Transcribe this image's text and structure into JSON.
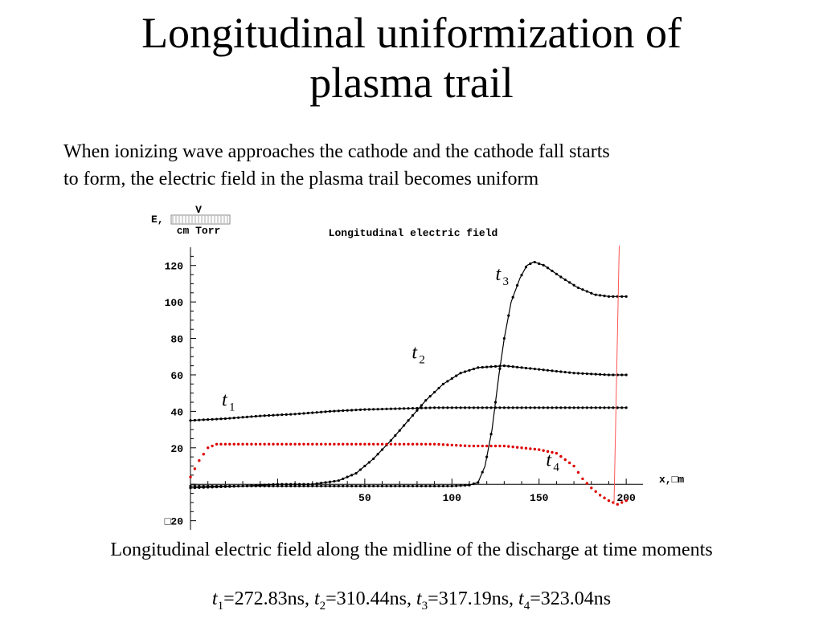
{
  "title": {
    "line1": "Longitudinal uniformization of",
    "line2": "plasma trail"
  },
  "paragraph": {
    "line1": "When ionizing wave approaches the cathode and the cathode fall starts",
    "line2": "to form, the electric field in the plasma trail becomes uniform"
  },
  "caption": {
    "line1": "Longitudinal electric field along the midline of the discharge at time moments",
    "times": [
      {
        "sym": "t",
        "sub": "1",
        "value": "=272.83ns"
      },
      {
        "sym": "t",
        "sub": "2",
        "value": "=310.44ns"
      },
      {
        "sym": "t",
        "sub": "3",
        "value": "=317.19ns"
      },
      {
        "sym": "t",
        "sub": "4",
        "value": "=323.04ns"
      }
    ]
  },
  "chart_data": {
    "type": "line",
    "title": "Longitudinal electric field",
    "ylabel_prefix": "E,",
    "ylabel_num": "V",
    "ylabel_den": "cm Torr",
    "xlabel": "x,□m",
    "xlim": [
      -50,
      205
    ],
    "ylim": [
      -25,
      130
    ],
    "xticks": [
      {
        "v": 50,
        "label": "50"
      },
      {
        "v": 100,
        "label": "100"
      },
      {
        "v": 150,
        "label": "150"
      },
      {
        "v": 200,
        "label": "200"
      }
    ],
    "yticks": [
      {
        "v": 120,
        "label": "120"
      },
      {
        "v": 100,
        "label": "100"
      },
      {
        "v": 80,
        "label": "80"
      },
      {
        "v": 60,
        "label": "60"
      },
      {
        "v": 40,
        "label": "40"
      },
      {
        "v": 20,
        "label": "20"
      },
      {
        "v": -20,
        "label": "□20"
      }
    ],
    "grid": false,
    "series": [
      {
        "name": "t1",
        "sub": "1",
        "color": "#000000",
        "label_at": [
          -32,
          43
        ],
        "points": [
          [
            -50,
            35
          ],
          [
            -30,
            36
          ],
          [
            -10,
            37.5
          ],
          [
            10,
            38.5
          ],
          [
            30,
            40
          ],
          [
            50,
            41
          ],
          [
            70,
            41.5
          ],
          [
            90,
            42
          ],
          [
            110,
            42
          ],
          [
            130,
            42
          ],
          [
            150,
            42
          ],
          [
            170,
            42
          ],
          [
            190,
            42
          ],
          [
            200,
            42
          ]
        ]
      },
      {
        "name": "t2",
        "sub": "2",
        "color": "#000000",
        "label_at": [
          77,
          69
        ],
        "points": [
          [
            -50,
            -2
          ],
          [
            -20,
            -1
          ],
          [
            0,
            0
          ],
          [
            20,
            0
          ],
          [
            35,
            2
          ],
          [
            45,
            6
          ],
          [
            55,
            14
          ],
          [
            65,
            24
          ],
          [
            75,
            35
          ],
          [
            85,
            46
          ],
          [
            95,
            55
          ],
          [
            105,
            61
          ],
          [
            115,
            64
          ],
          [
            130,
            65
          ],
          [
            150,
            63
          ],
          [
            170,
            61
          ],
          [
            190,
            60
          ],
          [
            200,
            60
          ]
        ]
      },
      {
        "name": "t3",
        "sub": "3",
        "color": "#000000",
        "label_at": [
          125,
          112
        ],
        "points": [
          [
            -50,
            -1
          ],
          [
            0,
            -1
          ],
          [
            50,
            -1
          ],
          [
            100,
            -1
          ],
          [
            110,
            -0.5
          ],
          [
            115,
            1
          ],
          [
            119,
            10
          ],
          [
            123,
            30
          ],
          [
            127,
            60
          ],
          [
            130,
            80
          ],
          [
            134,
            100
          ],
          [
            139,
            113
          ],
          [
            143,
            120
          ],
          [
            147,
            122
          ],
          [
            153,
            120
          ],
          [
            162,
            114
          ],
          [
            172,
            108
          ],
          [
            182,
            104
          ],
          [
            190,
            103
          ],
          [
            200,
            103
          ]
        ]
      },
      {
        "name": "t4",
        "sub": "4",
        "color": "#dd0000",
        "label_at": [
          154,
          10
        ],
        "points": [
          [
            -50,
            4
          ],
          [
            -45,
            13
          ],
          [
            -40,
            20
          ],
          [
            -35,
            22
          ],
          [
            -20,
            22
          ],
          [
            0,
            22
          ],
          [
            30,
            22
          ],
          [
            60,
            22
          ],
          [
            90,
            22
          ],
          [
            110,
            21
          ],
          [
            130,
            21
          ],
          [
            150,
            19
          ],
          [
            160,
            17
          ],
          [
            170,
            10
          ],
          [
            175,
            3
          ],
          [
            180,
            -2
          ],
          [
            185,
            -6
          ],
          [
            190,
            -9
          ],
          [
            195,
            -11
          ],
          [
            200,
            -9
          ]
        ]
      }
    ]
  }
}
